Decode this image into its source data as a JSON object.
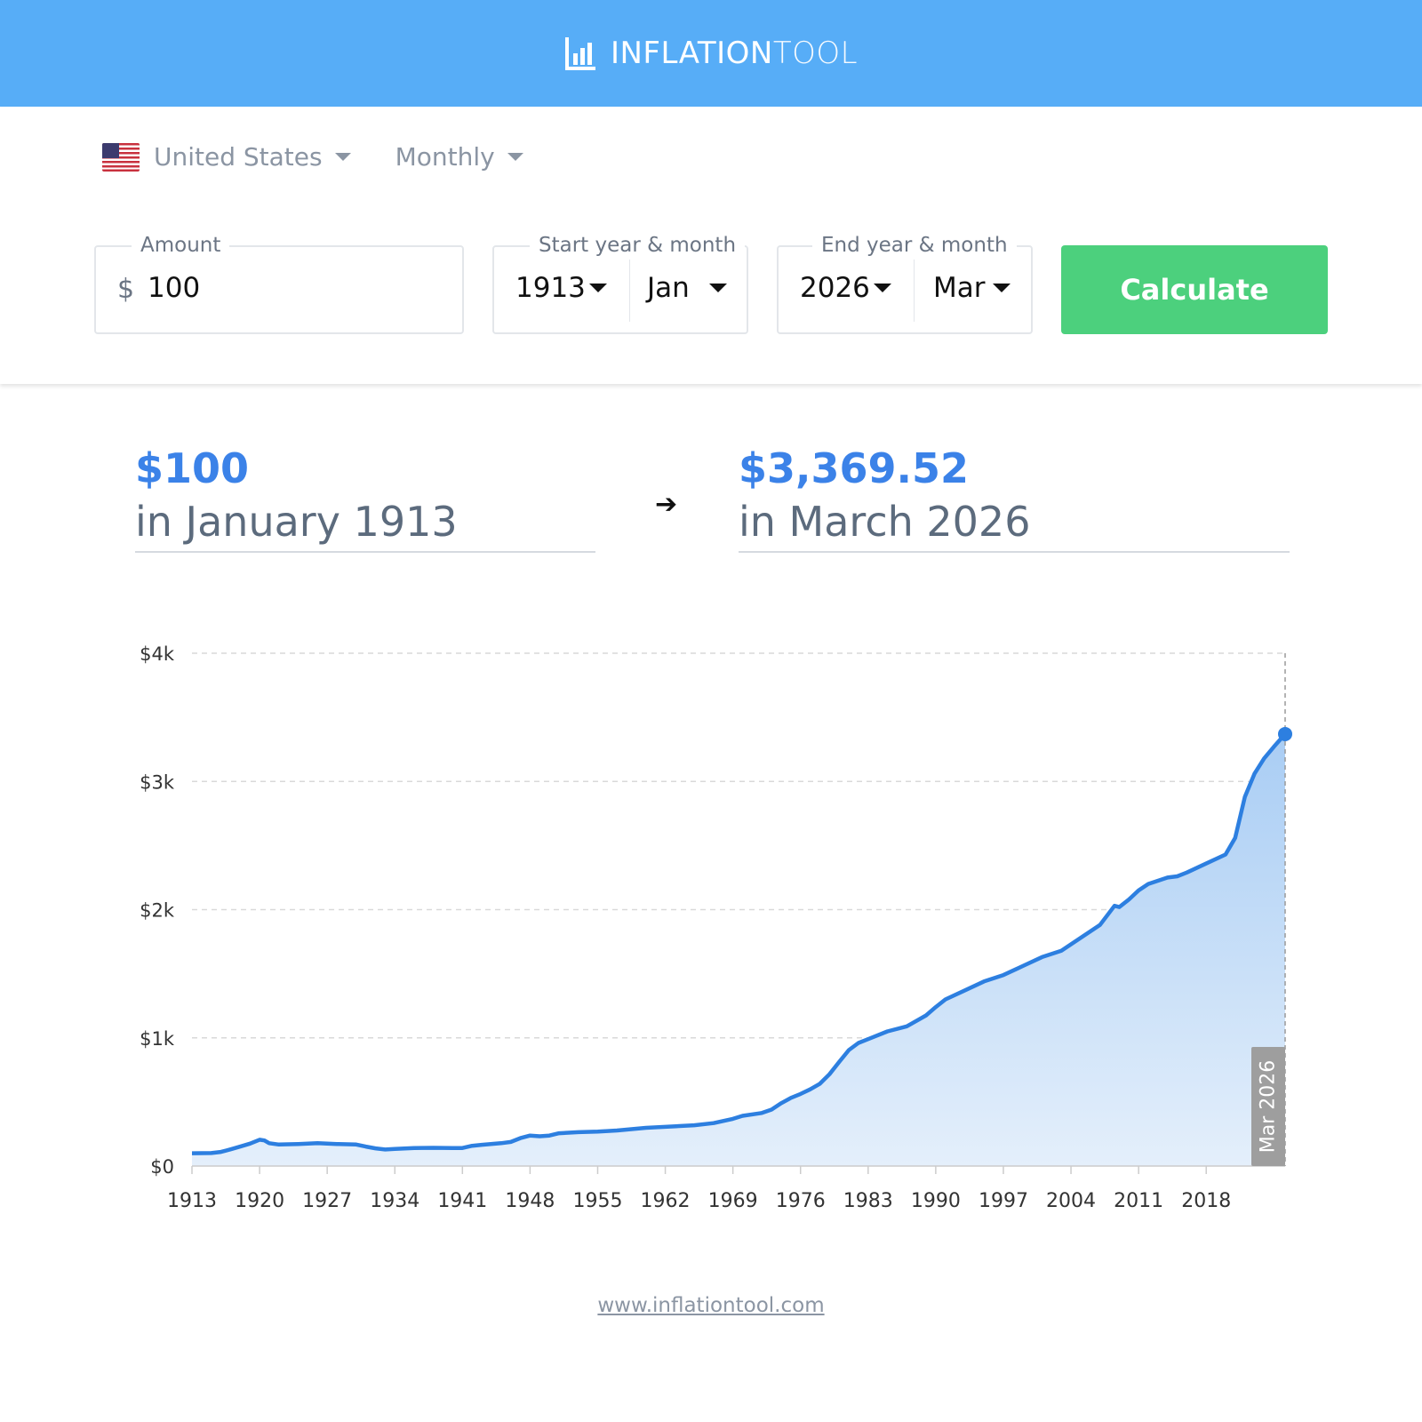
{
  "header": {
    "logo_text_bold": "INFLATION",
    "logo_text_light": "TOOL"
  },
  "filters": {
    "country": "United States",
    "frequency": "Monthly"
  },
  "form": {
    "amount_label": "Amount",
    "currency_symbol": "$",
    "amount_value": "100",
    "start_label": "Start year & month",
    "start_year": "1913",
    "start_month": "Jan",
    "end_label": "End year & month",
    "end_year": "2026",
    "end_month": "Mar",
    "calculate_label": "Calculate"
  },
  "result": {
    "from_amount": "$100",
    "from_when": "in January 1913",
    "to_amount": "$3,369.52",
    "to_when": "in March 2026"
  },
  "chart_data": {
    "type": "area",
    "y_ticks": [
      "$0",
      "$1k",
      "$2k",
      "$3k",
      "$4k"
    ],
    "y_tick_values": [
      0,
      1000,
      2000,
      3000,
      4000
    ],
    "x_ticks": [
      "1913",
      "1920",
      "1927",
      "1934",
      "1941",
      "1948",
      "1955",
      "1962",
      "1969",
      "1976",
      "1983",
      "1990",
      "1997",
      "2004",
      "2011",
      "2018"
    ],
    "ylim": [
      0,
      4000
    ],
    "xlim": [
      1913,
      2026.17
    ],
    "grid": true,
    "marker_label": "Mar 2026",
    "line_color": "#2d7fe0",
    "series": [
      {
        "x": [
          1913,
          1915,
          1916,
          1917,
          1918,
          1919,
          1920,
          1920.5,
          1921,
          1922,
          1924,
          1926,
          1928,
          1930,
          1931,
          1932,
          1933,
          1934,
          1936,
          1938,
          1940,
          1941,
          1942,
          1943,
          1945,
          1946,
          1947,
          1948,
          1949,
          1950,
          1951,
          1953,
          1955,
          1957,
          1960,
          1965,
          1967,
          1969,
          1970,
          1972,
          1973,
          1974,
          1975,
          1976,
          1977,
          1978,
          1979,
          1980,
          1981,
          1982,
          1983,
          1985,
          1987,
          1989,
          1990,
          1991,
          1993,
          1995,
          1997,
          1999,
          2001,
          2003,
          2005,
          2007,
          2008.5,
          2009,
          2010,
          2011,
          2012,
          2014,
          2015,
          2016,
          2018,
          2020,
          2021,
          2022,
          2023,
          2024,
          2025,
          2026.17
        ],
        "y": [
          100,
          101,
          110,
          130,
          152,
          175,
          205,
          200,
          178,
          168,
          172,
          178,
          172,
          168,
          152,
          138,
          129,
          133,
          140,
          142,
          140,
          141,
          158,
          166,
          178,
          188,
          218,
          238,
          232,
          238,
          256,
          264,
          268,
          277,
          298,
          318,
          335,
          368,
          392,
          414,
          440,
          490,
          532,
          562,
          598,
          642,
          716,
          812,
          905,
          960,
          990,
          1050,
          1090,
          1175,
          1240,
          1300,
          1370,
          1440,
          1490,
          1560,
          1630,
          1680,
          1780,
          1880,
          2030,
          2020,
          2080,
          2150,
          2200,
          2250,
          2260,
          2290,
          2360,
          2430,
          2560,
          2880,
          3060,
          3180,
          3270,
          3369.52
        ]
      }
    ]
  },
  "footer": {
    "url": "www.inflationtool.com"
  }
}
